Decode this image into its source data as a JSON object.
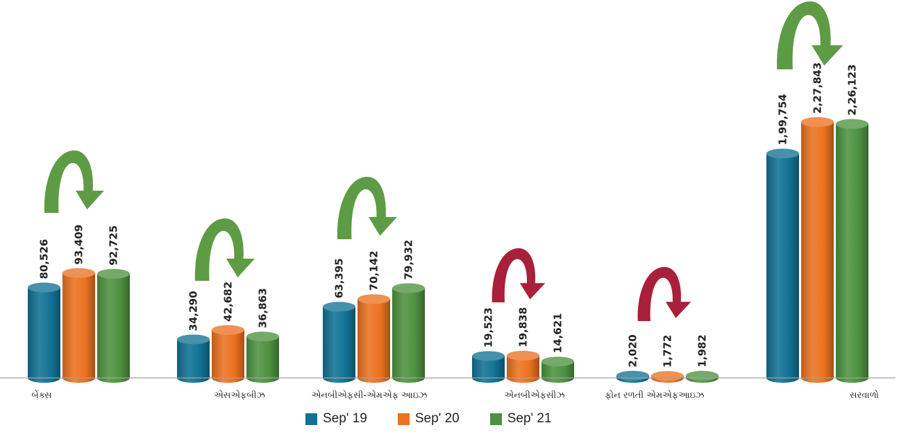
{
  "chart_data": {
    "type": "bar",
    "categories": [
      "બેંક્સ",
      "એસએફબીઝ",
      "એનબીએફસી-એમએફ આઇઝ",
      "એનબીએફસીઝ",
      "ફોન રળતી  એમએફઆઇઝ",
      "સરવાળો"
    ],
    "series": [
      {
        "name": "Sep' 19",
        "color": "#127294",
        "values": [
          80526,
          34290,
          63395,
          19523,
          2020,
          199754
        ],
        "labels": [
          "80,526",
          "34,290",
          "63,395",
          "19,523",
          "2,020",
          "1,99,754"
        ]
      },
      {
        "name": "Sep' 20",
        "color": "#EB7221",
        "values": [
          93409,
          42682,
          70142,
          19838,
          1772,
          227843
        ],
        "labels": [
          "93,409",
          "42,682",
          "70,142",
          "19,838",
          "1,772",
          "2,27,843"
        ]
      },
      {
        "name": "Sep' 21",
        "color": "#4E9240",
        "values": [
          92725,
          36863,
          79932,
          14621,
          1982,
          226123
        ],
        "labels": [
          "92,725",
          "36,863",
          "79,932",
          "14,621",
          "1,982",
          "2,26,123"
        ]
      }
    ],
    "trend_arrows": [
      "green",
      "green",
      "green",
      "red",
      "red",
      "green"
    ],
    "arrow_colors": {
      "green": "#5E9B45",
      "red": "#A8203A"
    },
    "axis_color": "#A0A0A0",
    "legend_position": "bottom",
    "grid": false
  }
}
